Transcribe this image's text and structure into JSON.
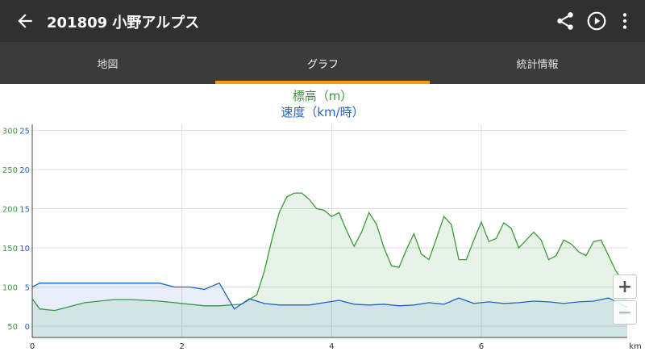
{
  "appbar": {
    "title": "201809 小野アルプス",
    "back_icon": "arrow-left-icon",
    "share_icon": "share-icon",
    "play_icon": "play-circle-icon",
    "menu_icon": "more-vert-icon"
  },
  "tabs": [
    {
      "label": "地図",
      "active": false
    },
    {
      "label": "グラフ",
      "active": true
    },
    {
      "label": "統計情報",
      "active": false
    }
  ],
  "colors": {
    "elevation": "#3a9a3a",
    "speed": "#1f63c9",
    "accent": "#f39c12",
    "appbar": "#303030",
    "tabbar": "#3b3b3b"
  },
  "zoom": {
    "plus": "+",
    "minus": "−"
  },
  "chart_data": {
    "type": "line",
    "title": "標高（m）",
    "subtitle": "速度（km/時）",
    "xlabel": "km",
    "x_ticks": [
      "0",
      "2",
      "4",
      "6"
    ],
    "xlim": [
      0,
      7.95
    ],
    "y_left_ticks": [
      "50",
      "100",
      "150",
      "200",
      "250",
      "300"
    ],
    "ylim_elevation": [
      50,
      310
    ],
    "y_right_ticks": [
      "0",
      "5",
      "10",
      "15",
      "20",
      "25"
    ],
    "ylim_speed": [
      0,
      25.5
    ],
    "grid": true,
    "series": [
      {
        "name": "標高（m）",
        "axis": "left",
        "fill": true,
        "x": [
          0,
          0.1,
          0.3,
          0.5,
          0.7,
          0.9,
          1.1,
          1.3,
          1.5,
          1.7,
          1.9,
          2.1,
          2.3,
          2.5,
          2.8,
          3.0,
          3.1,
          3.2,
          3.3,
          3.4,
          3.5,
          3.6,
          3.7,
          3.8,
          3.9,
          4.0,
          4.1,
          4.2,
          4.3,
          4.4,
          4.5,
          4.6,
          4.7,
          4.8,
          4.9,
          5.0,
          5.1,
          5.2,
          5.3,
          5.4,
          5.5,
          5.6,
          5.7,
          5.8,
          5.9,
          6.0,
          6.1,
          6.2,
          6.3,
          6.4,
          6.5,
          6.6,
          6.7,
          6.8,
          6.9,
          7.0,
          7.1,
          7.2,
          7.3,
          7.4,
          7.5,
          7.6,
          7.7,
          7.8,
          7.95
        ],
        "values": [
          85,
          72,
          70,
          75,
          80,
          82,
          84,
          84,
          83,
          82,
          80,
          78,
          76,
          76,
          78,
          90,
          120,
          160,
          195,
          215,
          220,
          220,
          212,
          200,
          198,
          190,
          195,
          172,
          152,
          170,
          195,
          180,
          150,
          127,
          125,
          148,
          168,
          142,
          135,
          162,
          190,
          180,
          135,
          135,
          160,
          183,
          158,
          162,
          182,
          175,
          150,
          160,
          170,
          160,
          135,
          140,
          160,
          155,
          145,
          140,
          158,
          160,
          140,
          120,
          100
        ]
      },
      {
        "name": "速度（km/時）",
        "axis": "right",
        "fill": true,
        "x": [
          0,
          0.1,
          0.3,
          0.5,
          0.7,
          0.9,
          1.1,
          1.3,
          1.5,
          1.7,
          1.9,
          2.1,
          2.3,
          2.5,
          2.7,
          2.9,
          3.1,
          3.3,
          3.5,
          3.7,
          3.9,
          4.1,
          4.3,
          4.5,
          4.7,
          4.9,
          5.1,
          5.3,
          5.5,
          5.7,
          5.9,
          6.1,
          6.3,
          6.5,
          6.7,
          6.9,
          7.1,
          7.3,
          7.5,
          7.7,
          7.95
        ],
        "values": [
          5.0,
          5.5,
          5.5,
          5.5,
          5.5,
          5.5,
          5.5,
          5.5,
          5.5,
          5.5,
          5.0,
          5.0,
          4.7,
          5.5,
          2.2,
          3.5,
          2.9,
          2.7,
          2.7,
          2.7,
          3.0,
          3.3,
          2.8,
          2.7,
          2.8,
          2.6,
          2.7,
          3.0,
          2.8,
          3.6,
          2.9,
          3.1,
          2.9,
          3.0,
          3.2,
          3.1,
          2.9,
          3.1,
          3.2,
          3.6,
          2.4
        ]
      }
    ]
  }
}
